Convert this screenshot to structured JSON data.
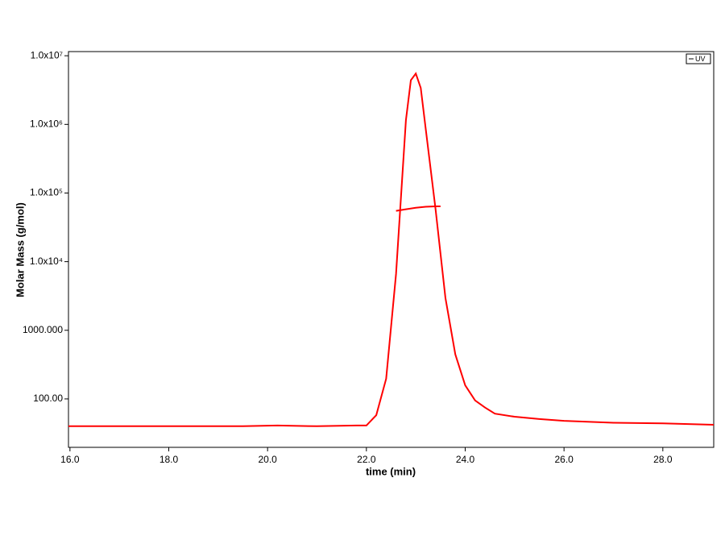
{
  "chart_data": {
    "type": "line",
    "log_y": true,
    "xlabel": "time (min)",
    "ylabel": "Molar Mass (g/mol)",
    "xlim": [
      15.97,
      29.03
    ],
    "ylim": [
      19.7,
      11500000
    ],
    "xticks": [
      {
        "value": 16,
        "label": "16.0"
      },
      {
        "value": 18,
        "label": "18.0"
      },
      {
        "value": 20,
        "label": "20.0"
      },
      {
        "value": 22,
        "label": "22.0"
      },
      {
        "value": 24,
        "label": "24.0"
      },
      {
        "value": 26,
        "label": "26.0"
      },
      {
        "value": 28,
        "label": "28.0"
      }
    ],
    "yticks": [
      {
        "value": 100,
        "label": "100.00"
      },
      {
        "value": 1000,
        "label": "1000.000"
      },
      {
        "value": 10000,
        "label": "1.0x10⁴"
      },
      {
        "value": 100000,
        "label": "1.0x10⁵"
      },
      {
        "value": 1000000,
        "label": "1.0x10⁶"
      },
      {
        "value": 10000000,
        "label": "1.0x10⁷"
      }
    ],
    "legend": "top-right",
    "series": [
      {
        "name": "UV",
        "color": "#ff0000",
        "x": [
          15.97,
          17,
          18,
          19,
          19.5,
          20.2,
          21,
          21.8,
          22,
          22.2,
          22.4,
          22.6,
          22.8,
          22.9,
          23,
          23.1,
          23.2,
          23.4,
          23.6,
          23.8,
          24,
          24.2,
          24.4,
          24.6,
          25,
          25.5,
          26,
          27,
          28,
          29.03
        ],
        "values": [
          40,
          40,
          40,
          40,
          40,
          41,
          40,
          41,
          41,
          58,
          197,
          6600,
          1150000,
          4400000,
          5500000,
          3400000,
          870000,
          58000,
          2950,
          445,
          158,
          95,
          75,
          61,
          55,
          51,
          48,
          45,
          44,
          42
        ]
      },
      {
        "color": "#ff0000",
        "x": [
          22.6,
          22.8,
          23.0,
          23.2,
          23.4,
          23.5
        ],
        "values": [
          55000,
          58000,
          61000,
          63000,
          64000,
          64000
        ]
      }
    ]
  }
}
